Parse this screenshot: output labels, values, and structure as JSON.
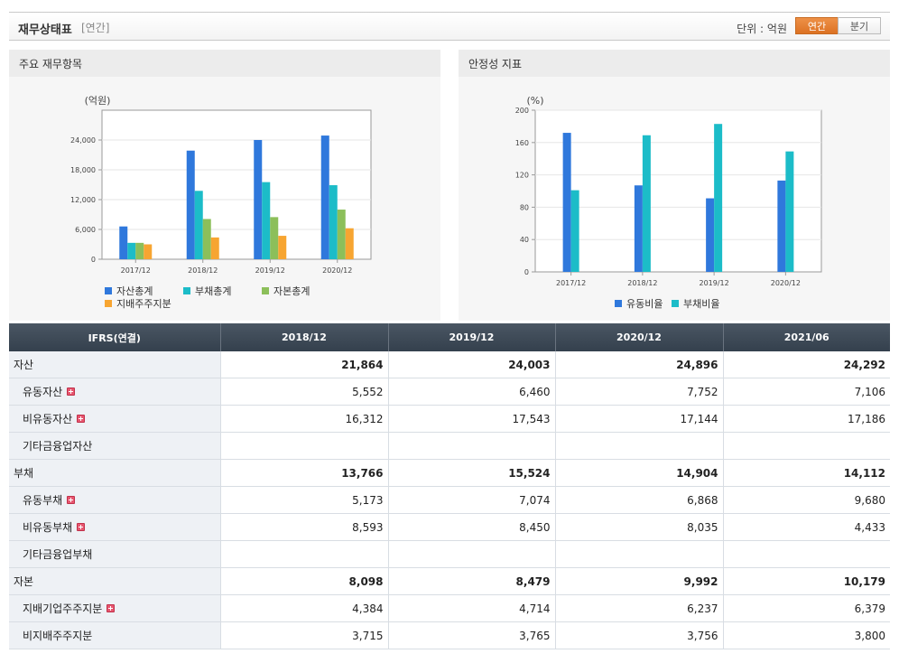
{
  "header": {
    "title": "재무상태표",
    "period_tag": "[연간]",
    "unit_label": "단위 : 억원",
    "toggle": [
      {
        "label": "연간",
        "active": true
      },
      {
        "label": "분기",
        "active": false
      }
    ]
  },
  "colors": {
    "blue": "#2f78dc",
    "teal": "#1cbcc8",
    "green": "#8cbf5a",
    "orange": "#f7a531"
  },
  "chart_data": [
    {
      "type": "bar",
      "panel_title": "주요 재무항목",
      "unit": "(억원)",
      "categories": [
        "2017/12",
        "2018/12",
        "2019/12",
        "2020/12"
      ],
      "ylim": [
        0,
        30000
      ],
      "yticks": [
        0,
        6000,
        12000,
        18000,
        24000
      ],
      "ytick_labels": [
        "0",
        "6,000",
        "12,000",
        "18,000",
        "24,000"
      ],
      "grid": true,
      "legend_position": "bottom-left",
      "series": [
        {
          "name": "자산총계",
          "color": "#2f78dc",
          "values": [
            6600,
            21864,
            24003,
            24896
          ]
        },
        {
          "name": "부채총계",
          "color": "#1cbcc8",
          "values": [
            3300,
            13766,
            15524,
            14904
          ]
        },
        {
          "name": "자본총계",
          "color": "#8cbf5a",
          "values": [
            3300,
            8098,
            8479,
            9992
          ]
        },
        {
          "name": "지배주주지분",
          "color": "#f7a531",
          "values": [
            3000,
            4384,
            4714,
            6237
          ]
        }
      ]
    },
    {
      "type": "bar",
      "panel_title": "안정성 지표",
      "unit": "(%)",
      "categories": [
        "2017/12",
        "2018/12",
        "2019/12",
        "2020/12"
      ],
      "ylim": [
        0,
        200
      ],
      "yticks": [
        0,
        40,
        80,
        120,
        160,
        200
      ],
      "ytick_labels": [
        "0",
        "40",
        "80",
        "120",
        "160",
        "200"
      ],
      "grid": true,
      "legend_position": "bottom-center",
      "series": [
        {
          "name": "유동비율",
          "color": "#2f78dc",
          "values": [
            172,
            107,
            91,
            113
          ]
        },
        {
          "name": "부채비율",
          "color": "#1cbcc8",
          "values": [
            101,
            169,
            183,
            149
          ]
        }
      ]
    }
  ],
  "table": {
    "header": [
      "IFRS(연결)",
      "2018/12",
      "2019/12",
      "2020/12",
      "2021/06"
    ],
    "rows": [
      {
        "label": "자산",
        "bold": true,
        "child": false,
        "plus": false,
        "values": [
          "21,864",
          "24,003",
          "24,896",
          "24,292"
        ]
      },
      {
        "label": "유동자산",
        "bold": false,
        "child": true,
        "plus": true,
        "values": [
          "5,552",
          "6,460",
          "7,752",
          "7,106"
        ]
      },
      {
        "label": "비유동자산",
        "bold": false,
        "child": true,
        "plus": true,
        "values": [
          "16,312",
          "17,543",
          "17,144",
          "17,186"
        ]
      },
      {
        "label": "기타금융업자산",
        "bold": false,
        "child": true,
        "plus": false,
        "values": [
          "",
          "",
          "",
          ""
        ]
      },
      {
        "label": "부채",
        "bold": true,
        "child": false,
        "plus": false,
        "values": [
          "13,766",
          "15,524",
          "14,904",
          "14,112"
        ]
      },
      {
        "label": "유동부채",
        "bold": false,
        "child": true,
        "plus": true,
        "values": [
          "5,173",
          "7,074",
          "6,868",
          "9,680"
        ]
      },
      {
        "label": "비유동부채",
        "bold": false,
        "child": true,
        "plus": true,
        "values": [
          "8,593",
          "8,450",
          "8,035",
          "4,433"
        ]
      },
      {
        "label": "기타금융업부채",
        "bold": false,
        "child": true,
        "plus": false,
        "values": [
          "",
          "",
          "",
          ""
        ]
      },
      {
        "label": "자본",
        "bold": true,
        "child": false,
        "plus": false,
        "values": [
          "8,098",
          "8,479",
          "9,992",
          "10,179"
        ]
      },
      {
        "label": "지배기업주주지분",
        "bold": false,
        "child": true,
        "plus": true,
        "values": [
          "4,384",
          "4,714",
          "6,237",
          "6,379"
        ]
      },
      {
        "label": "비지배주주지분",
        "bold": false,
        "child": true,
        "plus": false,
        "values": [
          "3,715",
          "3,765",
          "3,756",
          "3,800"
        ]
      }
    ]
  }
}
